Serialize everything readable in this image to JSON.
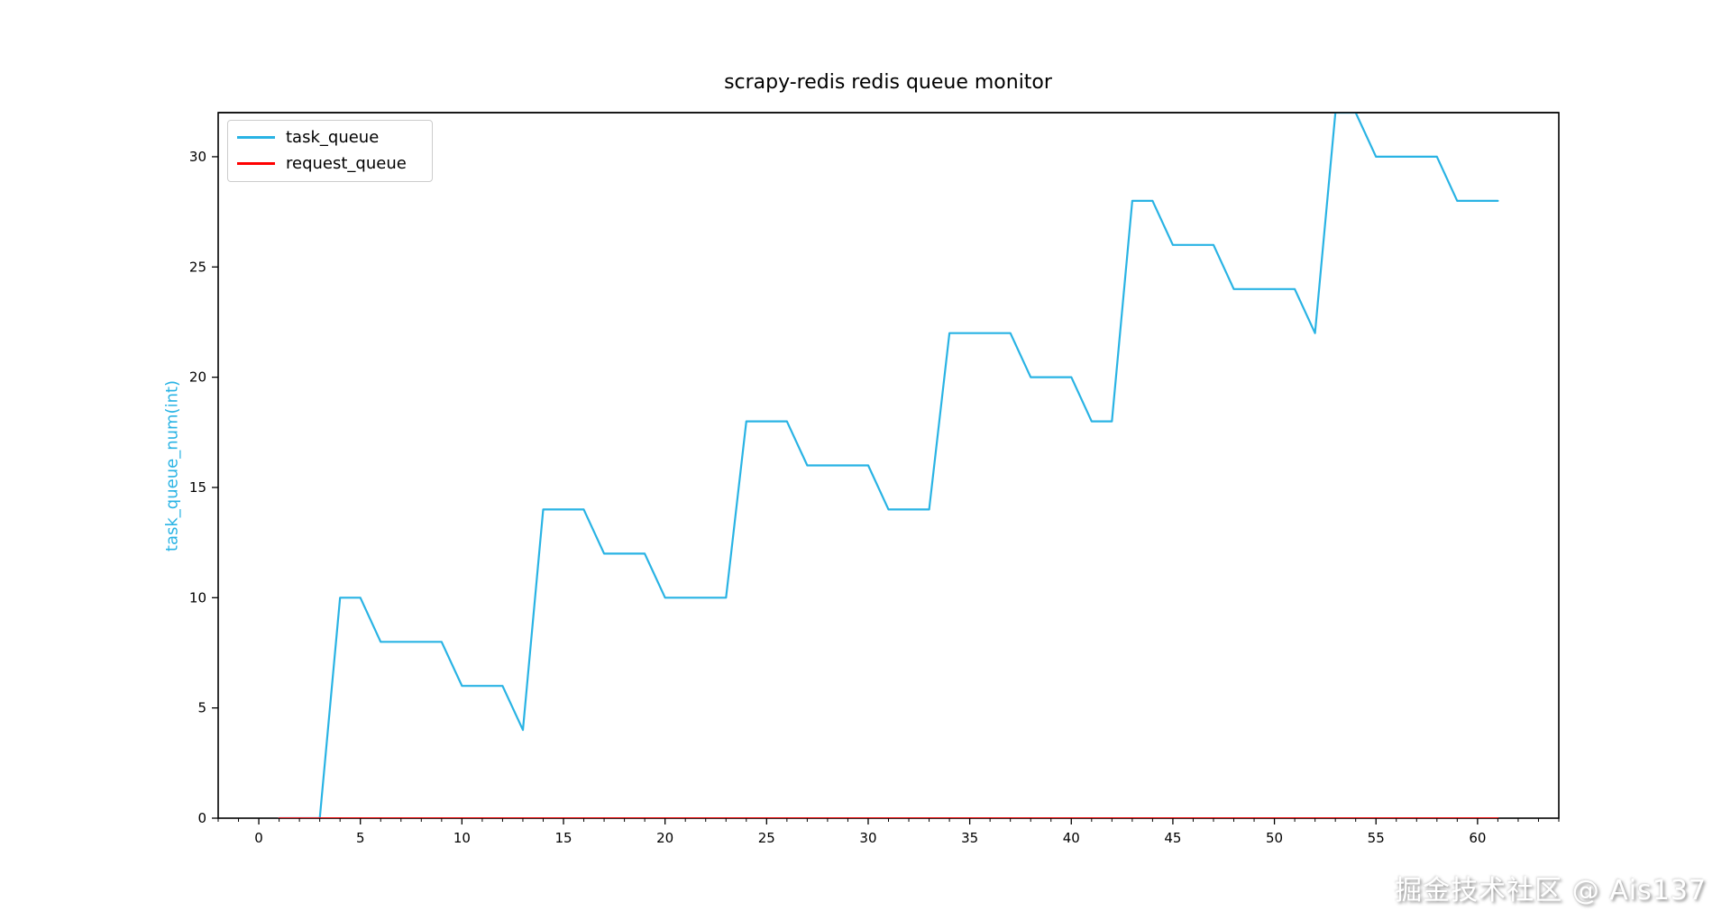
{
  "title": "scrapy-redis redis queue monitor",
  "watermark": "掘金技术社区 @ Ais137",
  "colors": {
    "task_queue": "#29b3e4",
    "request_queue": "#ff0000",
    "axis": "#000000",
    "tick_label": "#000000",
    "legend_border": "#cccccc",
    "background": "#ffffff"
  },
  "legend": {
    "position": "upper left",
    "items": [
      {
        "label": "task_queue",
        "color": "#29b3e4"
      },
      {
        "label": "request_queue",
        "color": "#ff0000"
      }
    ]
  },
  "chart_data": {
    "type": "line",
    "title": "scrapy-redis redis queue monitor",
    "xlabel": "",
    "ylabel": "task_queue_num(int)",
    "xlim": [
      -2,
      64
    ],
    "ylim": [
      0,
      32
    ],
    "x_major_ticks": [
      0,
      5,
      10,
      15,
      20,
      25,
      30,
      35,
      40,
      45,
      50,
      55,
      60
    ],
    "x_minor_tick_step": 1,
    "y_major_ticks": [
      0,
      5,
      10,
      15,
      20,
      25,
      30
    ],
    "grid": false,
    "legend_position": "upper left",
    "x": [
      1,
      2,
      3,
      4,
      5,
      6,
      7,
      8,
      9,
      10,
      11,
      12,
      13,
      14,
      15,
      16,
      17,
      18,
      19,
      20,
      21,
      22,
      23,
      24,
      25,
      26,
      27,
      28,
      29,
      30,
      31,
      32,
      33,
      34,
      35,
      36,
      37,
      38,
      39,
      40,
      41,
      42,
      43,
      44,
      45,
      46,
      47,
      48,
      49,
      50,
      51,
      52,
      53,
      54,
      55,
      56,
      57,
      58,
      59,
      60,
      61
    ],
    "series": [
      {
        "name": "task_queue",
        "color": "#29b3e4",
        "values": [
          0,
          0,
          0,
          10,
          10,
          8,
          8,
          8,
          8,
          6,
          6,
          6,
          4,
          14,
          14,
          14,
          12,
          12,
          12,
          10,
          10,
          10,
          10,
          18,
          18,
          18,
          16,
          16,
          16,
          16,
          14,
          14,
          14,
          22,
          22,
          22,
          22,
          20,
          20,
          20,
          18,
          18,
          28,
          28,
          26,
          26,
          26,
          24,
          24,
          24,
          24,
          22,
          32,
          32,
          30,
          30,
          30,
          30,
          28,
          28,
          28
        ]
      },
      {
        "name": "request_queue",
        "color": "#ff0000",
        "values": [
          0,
          0,
          0,
          0,
          0,
          0,
          0,
          0,
          0,
          0,
          0,
          0,
          0,
          0,
          0,
          0,
          0,
          0,
          0,
          0,
          0,
          0,
          0,
          0,
          0,
          0,
          0,
          0,
          0,
          0,
          0,
          0,
          0,
          0,
          0,
          0,
          0,
          0,
          0,
          0,
          0,
          0,
          0,
          0,
          0,
          0,
          0,
          0,
          0,
          0,
          0,
          0,
          0,
          0,
          0,
          0,
          0,
          0,
          0,
          0,
          0
        ]
      }
    ]
  }
}
